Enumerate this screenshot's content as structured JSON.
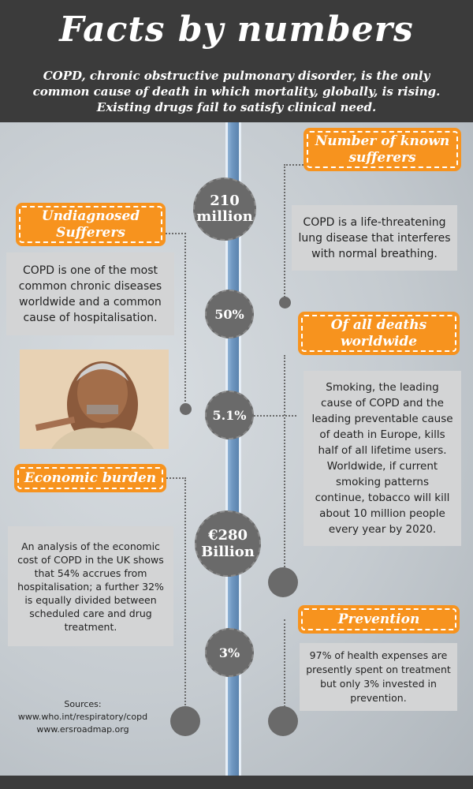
{
  "header": {
    "title": "Facts by numbers",
    "subtitle": "COPD, chronic obstructive pulmonary disorder, is the only common cause of death in which mortality, globally, is rising. Existing drugs fail to satisfy clinical need."
  },
  "stats": [
    {
      "value": "210 million"
    },
    {
      "value": "50%"
    },
    {
      "value": "5.1%"
    },
    {
      "value": "€280 Billion"
    },
    {
      "value": "3%"
    }
  ],
  "labels": {
    "known_sufferers": "Number of known sufferers",
    "undiagnosed": "Undiagnosed Sufferers",
    "all_deaths": "Of all deaths worldwide",
    "economic": "Economic burden",
    "prevention": "Prevention"
  },
  "texts": {
    "known_sufferers": "COPD is a life-threatening lung disease that interferes with normal breathing.",
    "undiagnosed": "COPD is one of the most common chronic diseases worldwide and a common cause of hospitalisation.",
    "all_deaths": "Smoking, the leading cause of COPD and the leading preventable cause of death in Europe, kills half of all lifetime users. Worldwide, if current smoking patterns continue, tobacco will kill about 10 million people every year by 2020.",
    "economic": "An analysis of the economic cost of COPD in the UK shows that 54% accrues from hospitalisation; a further 32% is equally divided between scheduled care and drug treatment.",
    "prevention": "97% of health expenses are presently spent on treatment but only 3% invested in prevention."
  },
  "sources": {
    "heading": "Sources:",
    "line1": "www.who.int/respiratory/copd",
    "line2": "www.ersroadmap.org"
  },
  "colors": {
    "orange": "#f7931e",
    "dark": "#3b3b3b",
    "circle": "#6a6a6a"
  }
}
